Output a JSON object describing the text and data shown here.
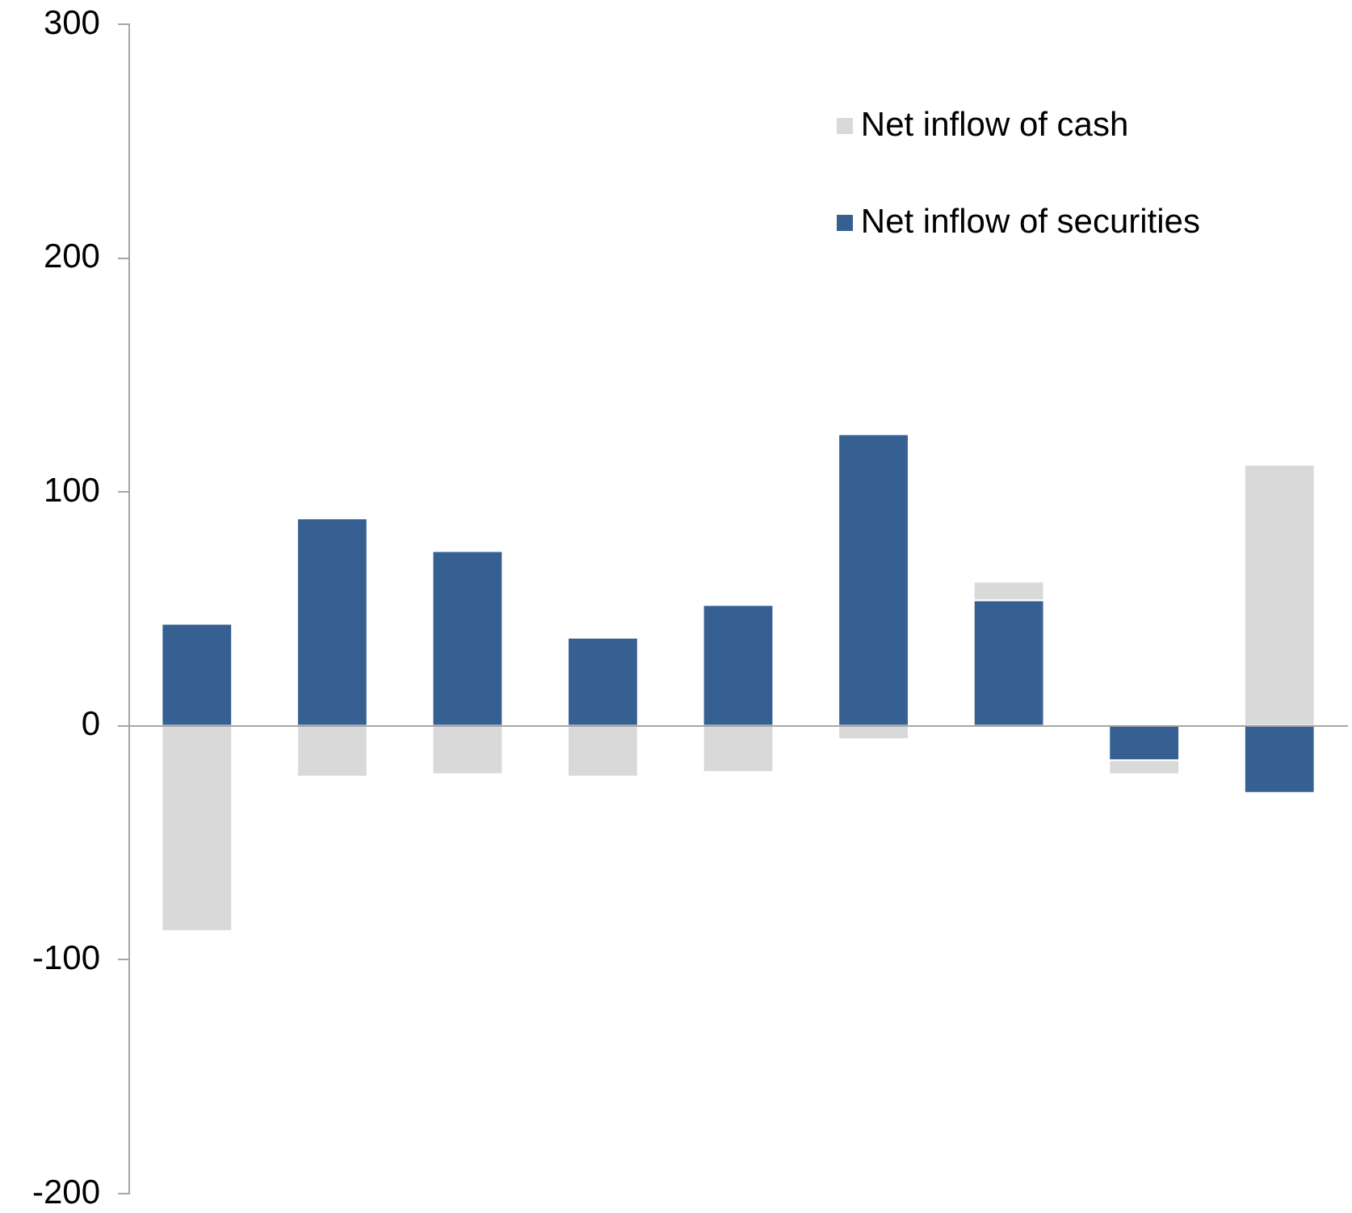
{
  "chart_data": {
    "type": "bar",
    "categories": [
      null,
      null,
      null,
      null,
      null,
      null,
      null,
      null,
      null
    ],
    "stacked": true,
    "series": [
      {
        "name": "Net inflow of securities",
        "color": "#366092",
        "values": [
          44,
          89,
          75,
          38,
          52,
          125,
          54,
          -15,
          -29
        ]
      },
      {
        "name": "Net inflow of cash",
        "color": "#d9d9d9",
        "values": [
          -88,
          -22,
          -21,
          -22,
          -20,
          -6,
          8,
          -6,
          112
        ]
      }
    ],
    "ylim": [
      -200,
      300
    ],
    "yticks": [
      -200,
      -100,
      0,
      100,
      200,
      300
    ],
    "legend": "top right"
  }
}
